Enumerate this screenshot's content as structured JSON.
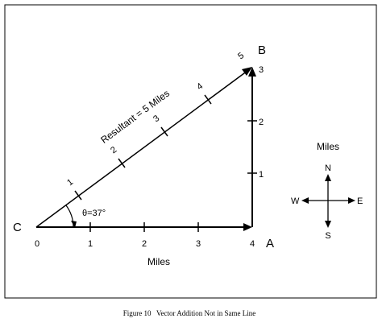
{
  "points": {
    "c": "C",
    "a": "A",
    "b": "B"
  },
  "bottom_ticks": [
    "0",
    "1",
    "2",
    "3",
    "4"
  ],
  "right_ticks": [
    "1",
    "2",
    "3"
  ],
  "hyp_ticks": [
    "1",
    "2",
    "3",
    "4",
    "5"
  ],
  "resultant_label": "Resultant = 5 Miles",
  "angle_label": "θ=37°",
  "bottom_axis_label": "Miles",
  "compass": {
    "title": "Miles",
    "north": "N",
    "south": "S",
    "east": "E",
    "west": "W"
  },
  "caption": "Figure 10   Vector Addition Not in Same Line"
}
